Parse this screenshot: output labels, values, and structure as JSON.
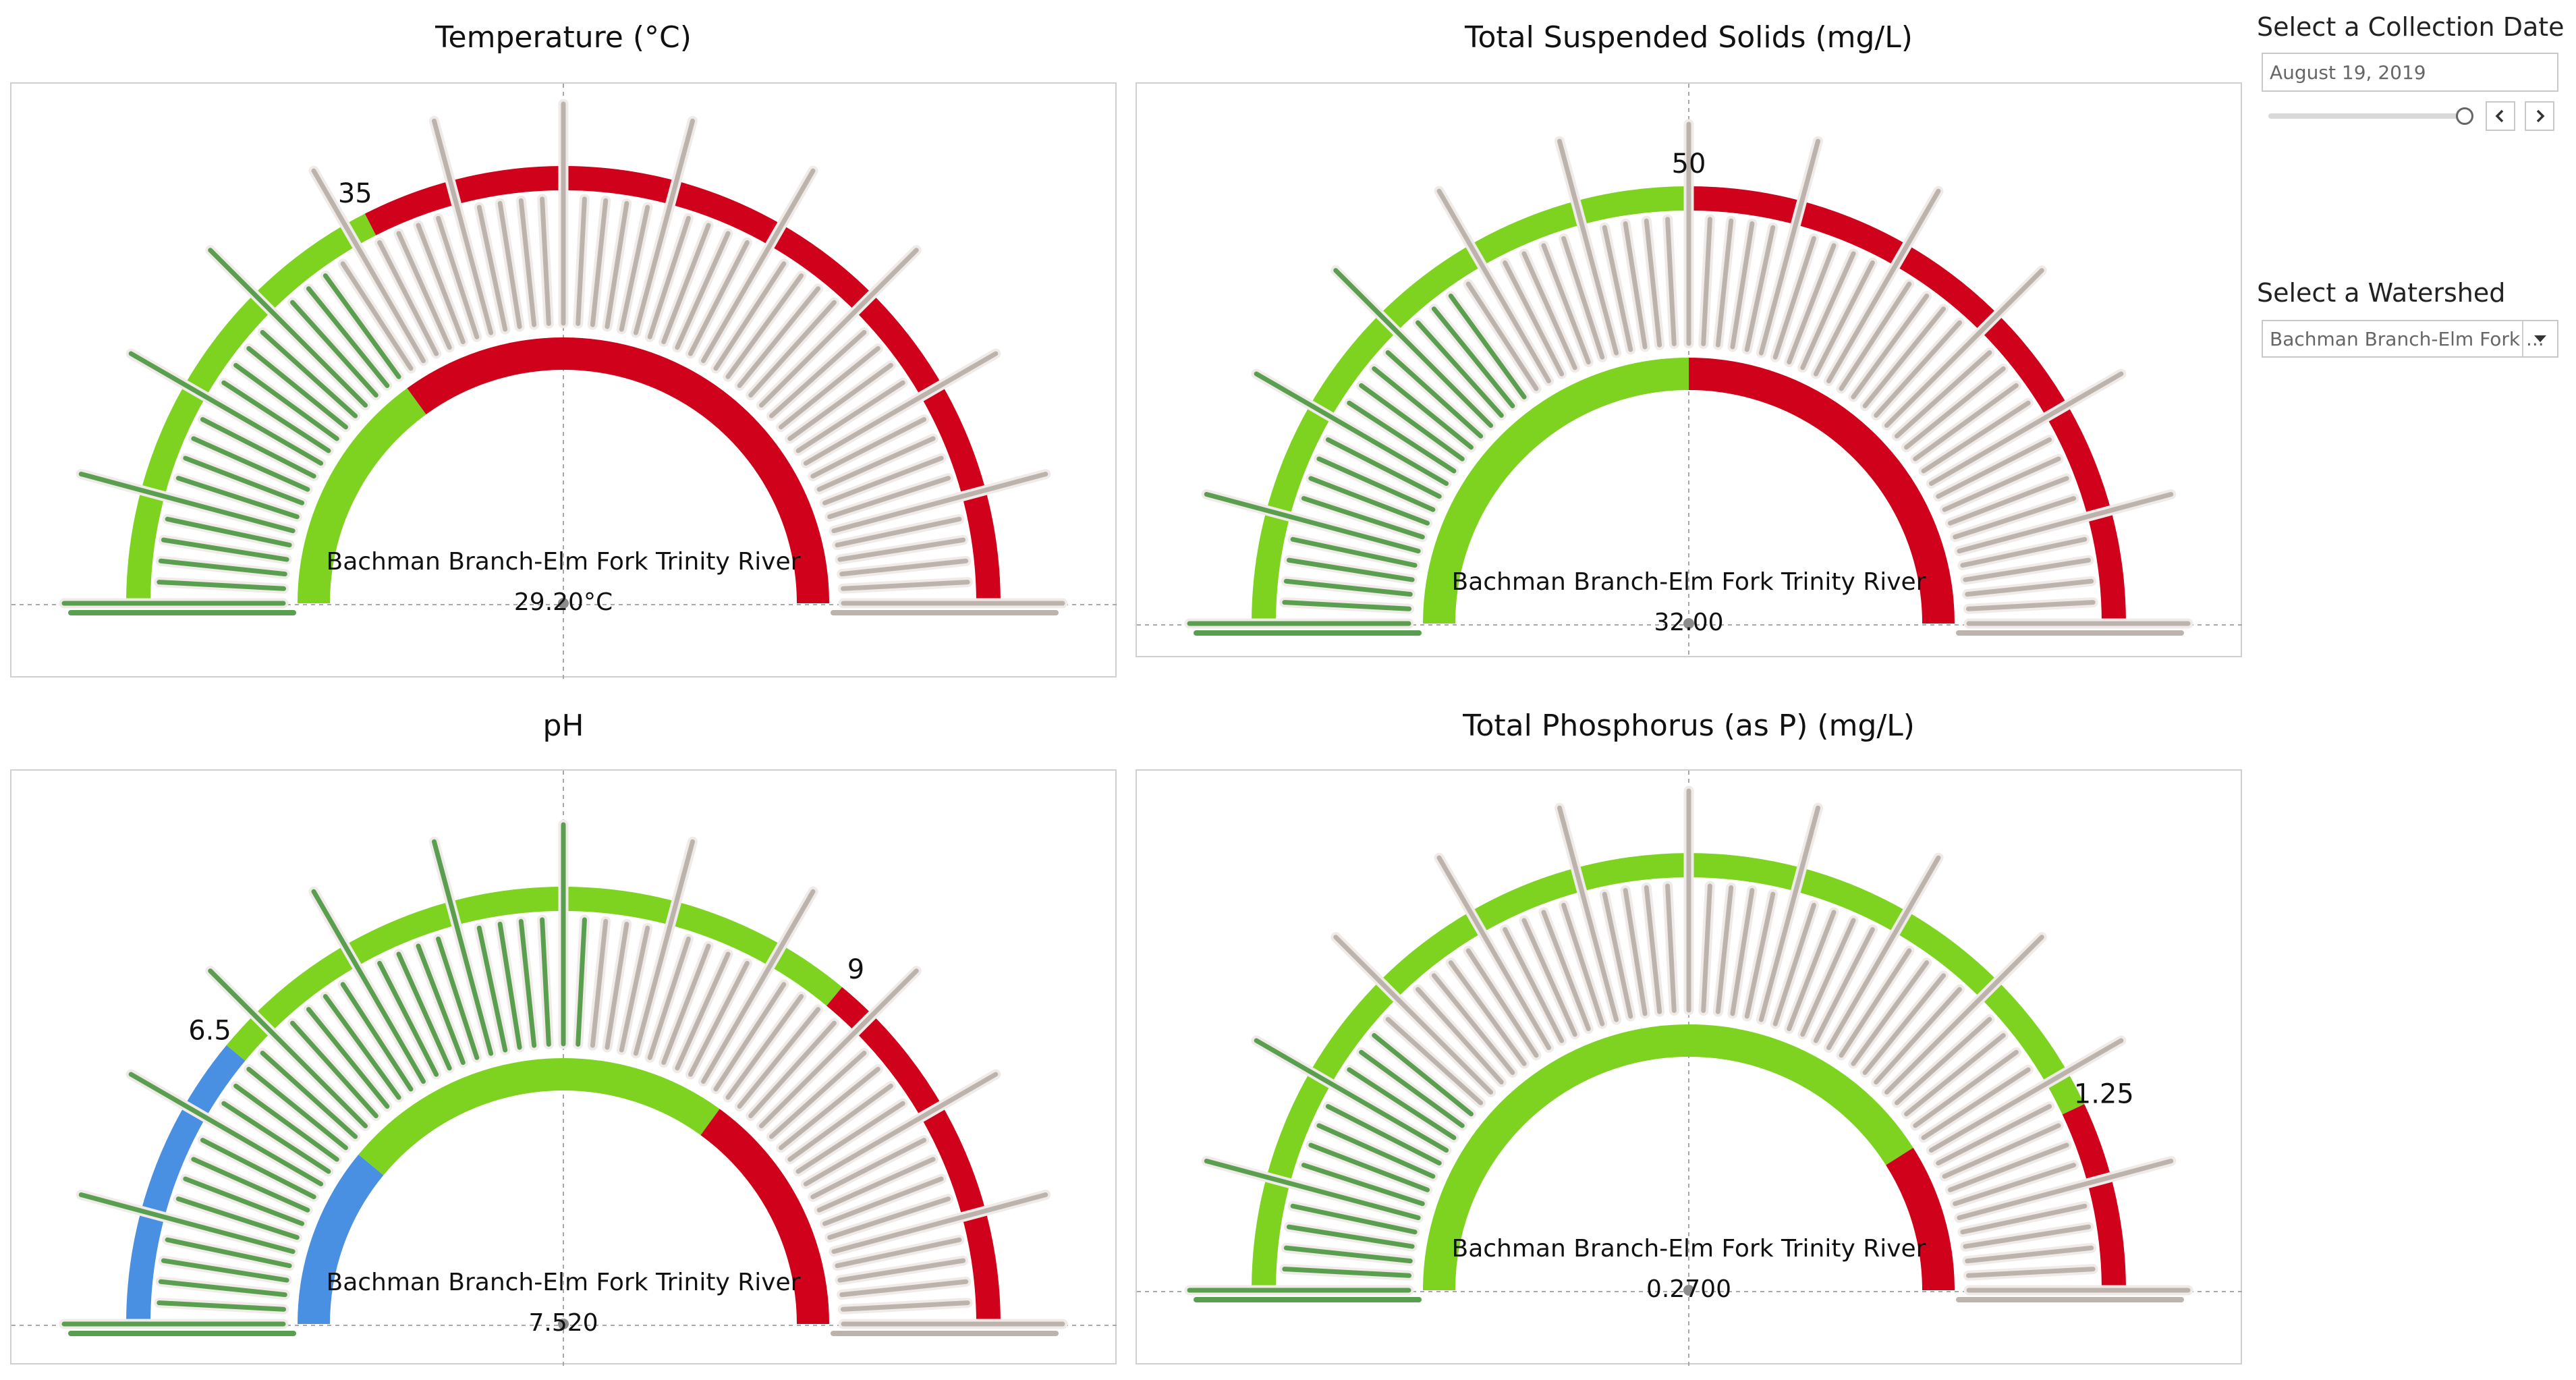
{
  "colors": {
    "low": "#4a90e2",
    "good": "#7ed321",
    "high": "#d0021b",
    "dark_green": "#5a9e50",
    "needle_gray": "#bcb3ad",
    "halo": "#f0ebe8",
    "axis": "#a8a8a8"
  },
  "controls": {
    "date_label": "Select a Collection Date",
    "date_value": "August 19, 2019",
    "watershed_label": "Select a Watershed",
    "watershed_value": "Bachman Branch-Elm Fork ..."
  },
  "charts": [
    {
      "id": "temperature",
      "title": "Temperature (°C)",
      "site_label": "Bachman Branch-Elm Fork Trinity River",
      "value_label": "29.20°C",
      "threshold_label": "35",
      "chart_data": {
        "type": "gauge",
        "value": 29.2,
        "threshold": 35,
        "fraction": 0.3,
        "outer_bands": [
          {
            "color": "good",
            "from": 0,
            "to": 0.35
          },
          {
            "color": "high",
            "from": 0.35,
            "to": 1
          }
        ],
        "inner_bands": [
          {
            "color": "good",
            "from": 0,
            "to": 0.3
          },
          {
            "color": "high",
            "from": 0.3,
            "to": 1
          }
        ]
      }
    },
    {
      "id": "tss",
      "title": "Total Suspended Solids (mg/L)",
      "site_label": "Bachman Branch-Elm Fork Trinity River",
      "value_label": "32.00",
      "threshold_label": "50",
      "chart_data": {
        "type": "gauge",
        "value": 32.0,
        "threshold": 50,
        "fraction": 0.3,
        "outer_bands": [
          {
            "color": "good",
            "from": 0,
            "to": 0.5
          },
          {
            "color": "high",
            "from": 0.5,
            "to": 1
          }
        ],
        "inner_bands": [
          {
            "color": "good",
            "from": 0,
            "to": 0.5
          },
          {
            "color": "high",
            "from": 0.5,
            "to": 1
          }
        ]
      }
    },
    {
      "id": "ph",
      "title": "pH",
      "site_label": "Bachman Branch-Elm Fork Trinity River",
      "value_label": "7.520",
      "threshold_labels": [
        "6.5",
        "9"
      ],
      "chart_data": {
        "type": "gauge",
        "value": 7.52,
        "thresholds": [
          6.5,
          9
        ],
        "fraction": 0.52,
        "outer_bands": [
          {
            "color": "low",
            "from": 0,
            "to": 0.22
          },
          {
            "color": "good",
            "from": 0.22,
            "to": 0.72
          },
          {
            "color": "high",
            "from": 0.72,
            "to": 1
          }
        ],
        "inner_bands": [
          {
            "color": "low",
            "from": 0,
            "to": 0.22
          },
          {
            "color": "good",
            "from": 0.22,
            "to": 0.7
          },
          {
            "color": "high",
            "from": 0.7,
            "to": 1
          }
        ]
      }
    },
    {
      "id": "phosphorus",
      "title": "Total Phosphorus (as P) (mg/L)",
      "site_label": "Bachman Branch-Elm Fork Trinity River",
      "value_label": "0.2700",
      "threshold_label": "1.25",
      "chart_data": {
        "type": "gauge",
        "value": 0.27,
        "threshold": 1.25,
        "fraction": 0.22,
        "outer_bands": [
          {
            "color": "good",
            "from": 0,
            "to": 0.86
          },
          {
            "color": "high",
            "from": 0.86,
            "to": 1
          }
        ],
        "inner_bands": [
          {
            "color": "good",
            "from": 0,
            "to": 0.82
          },
          {
            "color": "high",
            "from": 0.82,
            "to": 1
          }
        ]
      }
    }
  ]
}
